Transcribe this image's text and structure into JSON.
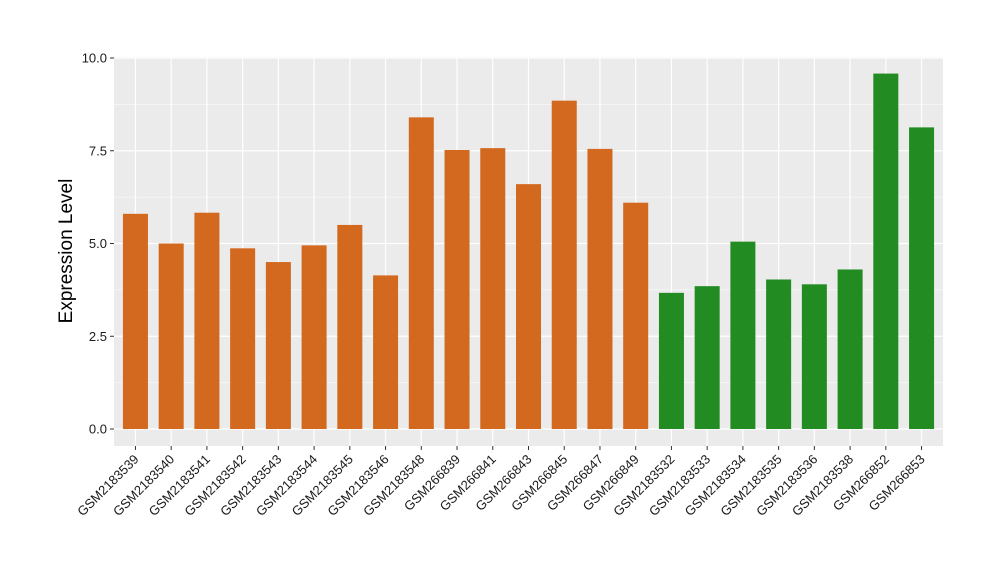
{
  "chart_data": {
    "type": "bar",
    "title": "",
    "xlabel": "",
    "ylabel": "Expression Level",
    "ylim": [
      0,
      10
    ],
    "yticks": [
      "0.0",
      "2.5",
      "5.0",
      "7.5",
      "10.0"
    ],
    "grid": true,
    "categories": [
      "GSM2183539",
      "GSM2183540",
      "GSM2183541",
      "GSM2183542",
      "GSM2183543",
      "GSM2183544",
      "GSM2183545",
      "GSM2183546",
      "GSM2183548",
      "GSM266839",
      "GSM266841",
      "GSM266843",
      "GSM266845",
      "GSM266847",
      "GSM266849",
      "GSM2183532",
      "GSM2183533",
      "GSM2183534",
      "GSM2183535",
      "GSM2183536",
      "GSM2183538",
      "GSM266852",
      "GSM266853"
    ],
    "values": [
      5.8,
      5.0,
      5.83,
      4.87,
      4.5,
      4.95,
      5.5,
      4.14,
      8.4,
      7.52,
      7.57,
      6.6,
      8.85,
      7.55,
      6.1,
      3.67,
      3.85,
      5.05,
      4.03,
      3.9,
      4.3,
      9.58,
      8.13
    ],
    "groups": [
      "orange",
      "orange",
      "orange",
      "orange",
      "orange",
      "orange",
      "orange",
      "orange",
      "orange",
      "orange",
      "orange",
      "orange",
      "orange",
      "orange",
      "orange",
      "green",
      "green",
      "green",
      "green",
      "green",
      "green",
      "green",
      "green"
    ],
    "colors": {
      "orange": "#D2691E",
      "green": "#228B22"
    },
    "panel_background": "#EBEBEB",
    "gridline_color": "#FFFFFF"
  }
}
